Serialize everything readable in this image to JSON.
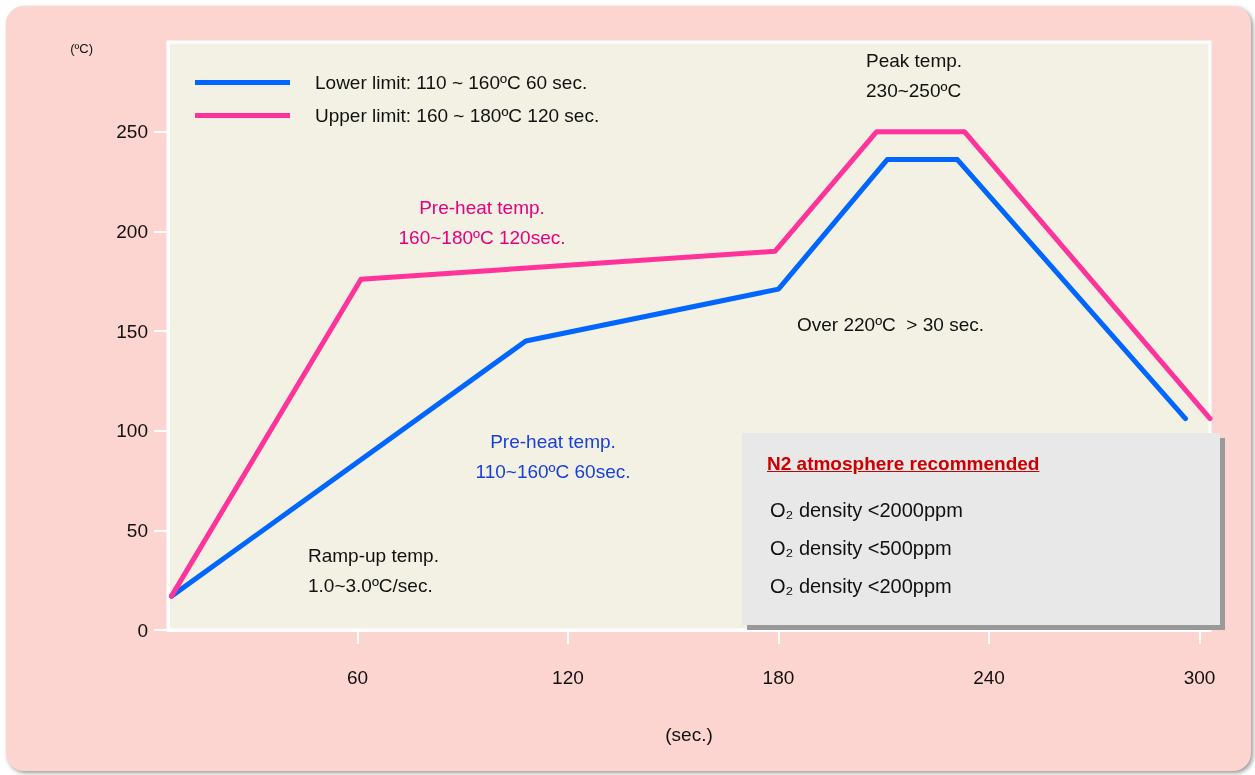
{
  "chart_data": {
    "type": "line",
    "xlabel": "(sec.)",
    "ylabel": "(ºC)",
    "xlim": [
      6,
      303
    ],
    "ylim": [
      0,
      295
    ],
    "xticks": [
      60,
      120,
      180,
      240,
      300
    ],
    "yticks": [
      0,
      50,
      100,
      150,
      200,
      250
    ],
    "grid": false,
    "legend": "top left",
    "marker": "none",
    "line_style": "solid",
    "series": [
      {
        "name": "Lower limit: 110 ~ 160ºC 60 sec.",
        "color": "#0066ff",
        "x": [
          7,
          108,
          180,
          211,
          231,
          296
        ],
        "values": [
          17,
          145,
          171,
          236,
          236,
          106
        ]
      },
      {
        "name": "Upper limit: 160 ~ 180ºC 120 sec.",
        "color": "#ff3399",
        "x": [
          7,
          61,
          179,
          208,
          233,
          303
        ],
        "values": [
          17,
          176,
          190,
          250,
          250,
          106
        ]
      }
    ],
    "annotations": [
      "Peak temp.\n230~250ºC",
      "Pre-heat temp.\n160~180ºC 120sec.",
      "Pre-heat temp.\n110~160ºC 60sec.",
      "Ramp-up temp.\n1.0~3.0ºC/sec.",
      "Over 220ºC  > 30 sec.",
      "N2 atmosphere recommended",
      "O₂ density <2000ppm",
      "O₂ density <500ppm",
      "O₂ density <200ppm"
    ]
  }
}
